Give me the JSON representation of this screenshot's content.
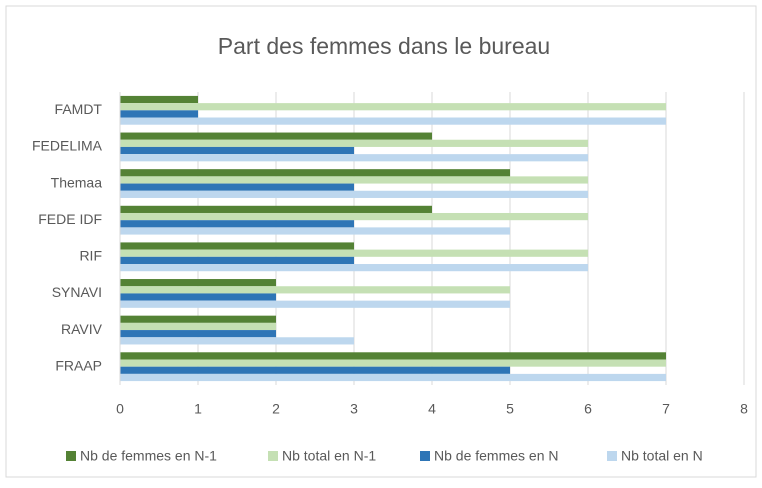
{
  "chart_data": {
    "type": "bar",
    "orientation": "horizontal",
    "title": "Part des femmes dans le bureau",
    "categories": [
      "FAMDT",
      "FEDELIMA",
      "Themaa",
      "FEDE IDF",
      "RIF",
      "SYNAVI",
      "RAVIV",
      "FRAAP"
    ],
    "series": [
      {
        "name": "Nb de femmes en N-1",
        "color": "#548235",
        "values": [
          1,
          4,
          5,
          4,
          3,
          2,
          2,
          7
        ]
      },
      {
        "name": "Nb total en N-1",
        "color": "#c5e0b4",
        "values": [
          7,
          6,
          6,
          6,
          6,
          5,
          2,
          7
        ]
      },
      {
        "name": "Nb de femmes en N",
        "color": "#2e75b6",
        "values": [
          1,
          3,
          3,
          3,
          3,
          2,
          2,
          5
        ]
      },
      {
        "name": "Nb total en N",
        "color": "#bdd7ee",
        "values": [
          7,
          6,
          6,
          5,
          6,
          5,
          3,
          7
        ]
      }
    ],
    "xlim": [
      0,
      8
    ],
    "xticks": [
      0,
      1,
      2,
      3,
      4,
      5,
      6,
      7,
      8
    ],
    "grid": true,
    "legend": "bottom"
  }
}
